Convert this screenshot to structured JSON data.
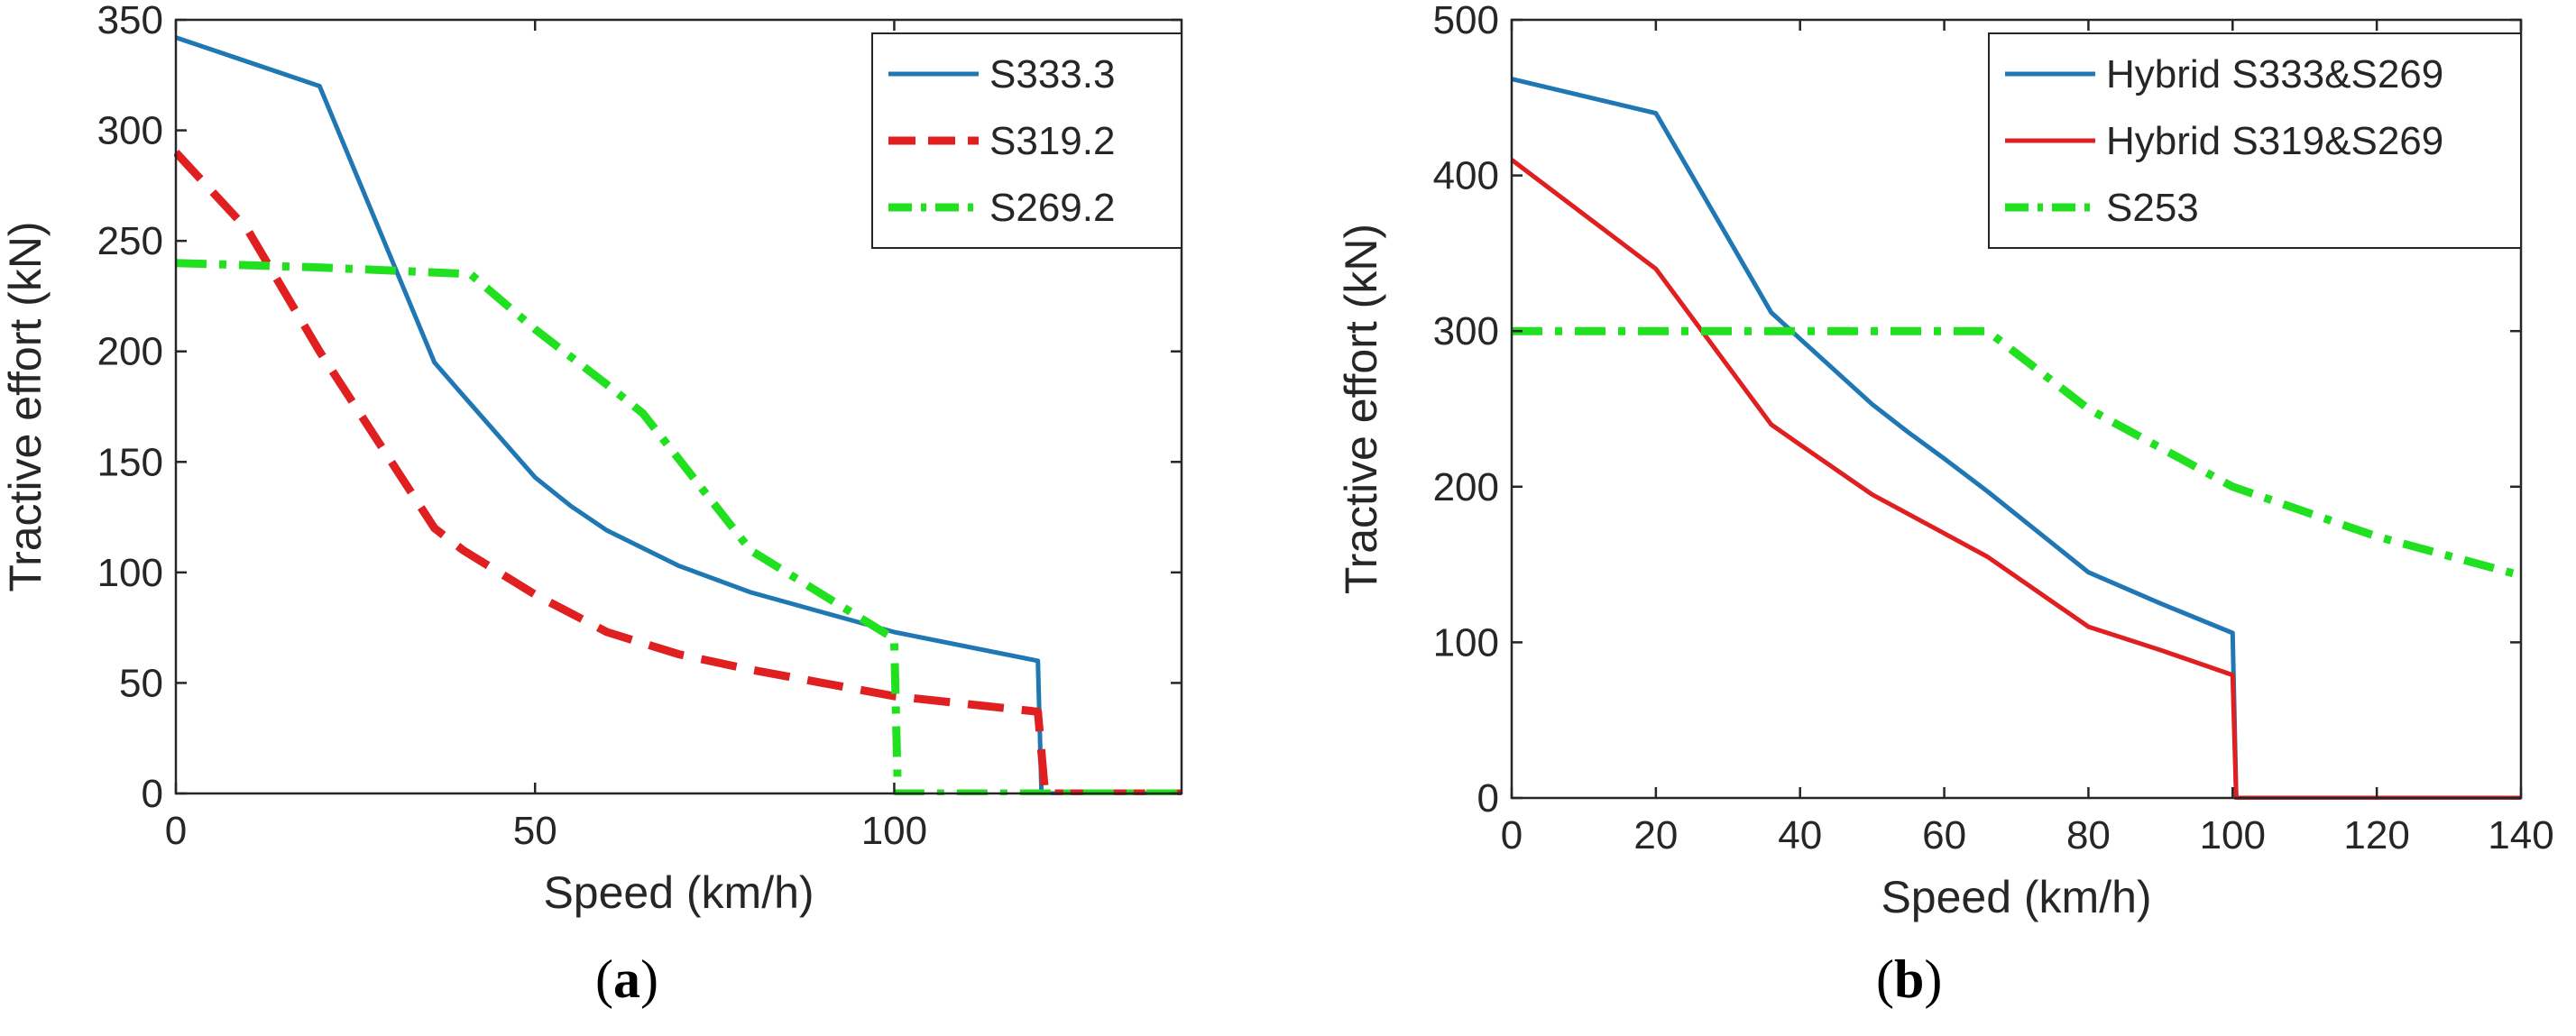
{
  "figure": {
    "panels": [
      {
        "caption_open": "(",
        "caption_label": "a",
        "caption_close": ")"
      },
      {
        "caption_open": "(",
        "caption_label": "b",
        "caption_close": ")"
      }
    ]
  },
  "chart_data": [
    {
      "type": "line",
      "xlabel": "Speed (km/h)",
      "ylabel": "Tractive effort (kN)",
      "xlim": [
        0,
        140
      ],
      "ylim": [
        0,
        350
      ],
      "xticks": [
        0,
        50,
        100
      ],
      "yticks": [
        0,
        50,
        100,
        150,
        200,
        250,
        300,
        350
      ],
      "grid": false,
      "legend_position": "top-right",
      "series": [
        {
          "name": "S333.3",
          "color": "#1f77b4",
          "style": "solid",
          "x": [
            0,
            20,
            36,
            40,
            50,
            55,
            60,
            70,
            80,
            90,
            100,
            120,
            120.5,
            122,
            140
          ],
          "y": [
            342,
            320,
            195,
            180,
            143,
            130,
            119,
            103,
            91,
            82,
            73,
            60,
            0,
            0,
            0
          ]
        },
        {
          "name": "S319.2",
          "color": "#e02020",
          "style": "dashed",
          "x": [
            0,
            10,
            20,
            36,
            40,
            50,
            60,
            70,
            80,
            90,
            100,
            120,
            121,
            140
          ],
          "y": [
            290,
            255,
            200,
            120,
            110,
            90,
            73,
            63,
            56,
            50,
            44,
            37,
            0,
            0
          ]
        },
        {
          "name": "S269.2",
          "color": "#20e020",
          "style": "dashdot",
          "x": [
            0,
            20,
            41,
            50,
            60,
            65,
            80,
            100,
            100.5,
            140
          ],
          "y": [
            240,
            238,
            235,
            210,
            185,
            172,
            110,
            70,
            0,
            0
          ]
        }
      ]
    },
    {
      "type": "line",
      "xlabel": "Speed (km/h)",
      "ylabel": "Tractive effort (kN)",
      "xlim": [
        0,
        140
      ],
      "ylim": [
        0,
        500
      ],
      "xticks": [
        0,
        20,
        40,
        60,
        80,
        100,
        120,
        140
      ],
      "yticks": [
        0,
        100,
        200,
        300,
        400,
        500
      ],
      "grid": false,
      "legend_position": "top-right",
      "series": [
        {
          "name": "Hybrid S333&S269",
          "color": "#1f77b4",
          "style": "solid",
          "x": [
            0,
            20,
            36,
            40,
            50,
            55,
            60,
            66,
            80,
            90,
            100,
            100.5,
            140
          ],
          "y": [
            462,
            440,
            312,
            295,
            253,
            235,
            218,
            197,
            145,
            125,
            106,
            0,
            0
          ]
        },
        {
          "name": "Hybrid S319&S269",
          "color": "#e02020",
          "style": "solid",
          "x": [
            0,
            20,
            36,
            40,
            50,
            60,
            66,
            80,
            90,
            100,
            100.5,
            140
          ],
          "y": [
            410,
            340,
            240,
            227,
            195,
            170,
            155,
            110,
            95,
            79,
            0,
            0
          ]
        },
        {
          "name": "S253",
          "color": "#20e020",
          "style": "dashdot",
          "x": [
            0,
            66,
            80,
            100,
            120,
            140
          ],
          "y": [
            300,
            300,
            250,
            200,
            168,
            143
          ]
        }
      ]
    }
  ]
}
